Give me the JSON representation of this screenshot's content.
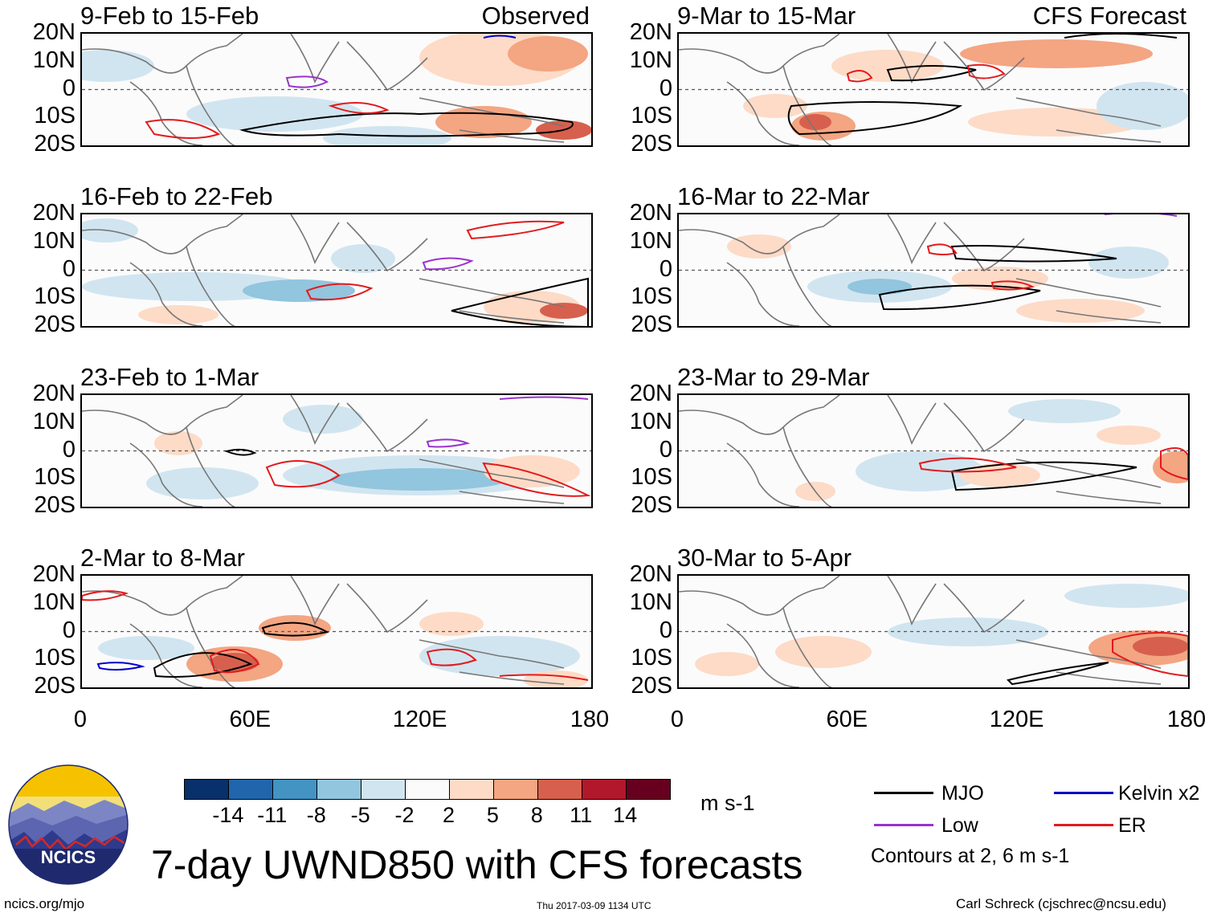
{
  "chart_data": {
    "type": "heatmap",
    "variable": "UWND850",
    "title": "7-day UWND850 with CFS forecasts",
    "units": "m s-1",
    "lat_ticks": [
      "20N",
      "10N",
      "0",
      "10S",
      "20S"
    ],
    "lon_ticks": [
      "0",
      "60E",
      "120E",
      "180"
    ],
    "lat_range": [
      -20,
      20
    ],
    "lon_range": [
      0,
      180
    ],
    "colorbar_levels": [
      "-14",
      "-11",
      "-8",
      "-5",
      "-2",
      "2",
      "5",
      "8",
      "11",
      "14"
    ],
    "colorbar_colors": [
      "#08306b",
      "#2166ac",
      "#4393c3",
      "#92c5de",
      "#d1e5f0",
      "#fbfbfb",
      "#fddbc7",
      "#f4a582",
      "#d6604d",
      "#b2182b",
      "#67001f"
    ],
    "observed_label": "Observed",
    "forecast_label": "CFS Forecast",
    "panels": [
      {
        "title": "9-Feb to 15-Feb",
        "source": "Observed"
      },
      {
        "title": "16-Feb to 22-Feb",
        "source": ""
      },
      {
        "title": "23-Feb to 1-Mar",
        "source": ""
      },
      {
        "title": "2-Mar to 8-Mar",
        "source": ""
      },
      {
        "title": "9-Mar to 15-Mar",
        "source": "CFS Forecast"
      },
      {
        "title": "16-Mar to 22-Mar",
        "source": ""
      },
      {
        "title": "23-Mar to 29-Mar",
        "source": ""
      },
      {
        "title": "30-Mar to 5-Apr",
        "source": ""
      }
    ],
    "legend": [
      {
        "label": "MJO",
        "color": "#000000"
      },
      {
        "label": "Kelvin x2",
        "color": "#0000cc"
      },
      {
        "label": "Low",
        "color": "#9932cc"
      },
      {
        "label": "ER",
        "color": "#e31a1c"
      }
    ],
    "contour_note": "Contours at 2, 6 m s-1"
  },
  "footer": {
    "site": "ncics.org/mjo",
    "timestamp": "Thu 2017-03-09 1134 UTC",
    "credit": "Carl Schreck (cjschrec@ncsu.edu)",
    "logo_text": "NCICS"
  }
}
